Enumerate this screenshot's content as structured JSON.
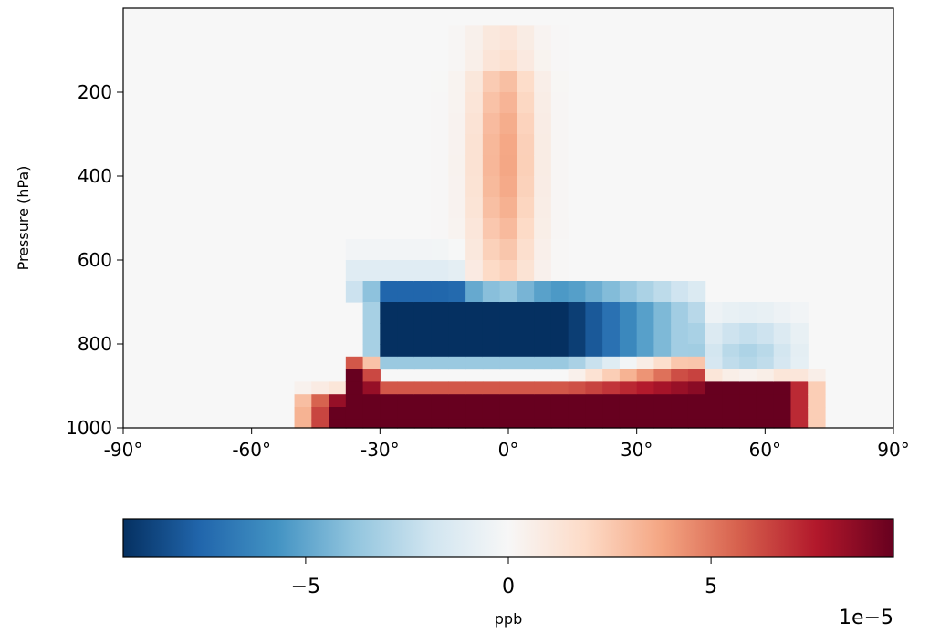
{
  "chart_data": {
    "type": "heatmap",
    "title": "",
    "xlabel": "",
    "ylabel": "Pressure (hPa)",
    "xlim": [
      -90,
      90
    ],
    "ylim": [
      1000,
      0
    ],
    "x_ticks": [
      -90,
      -60,
      -30,
      0,
      30,
      60,
      90
    ],
    "x_tick_labels": [
      "-90°",
      "-60°",
      "-30°",
      "0°",
      "30°",
      "60°",
      "90°"
    ],
    "y_ticks": [
      200,
      400,
      600,
      800,
      1000
    ],
    "y_tick_labels": [
      "200",
      "400",
      "600",
      "800",
      "1000"
    ],
    "grid": false,
    "colormap": "RdBu_r",
    "value_range": [
      -9.5e-05,
      9.5e-05
    ],
    "colorbar": {
      "label": "ppb",
      "orientation": "horizontal",
      "ticks": [
        -5e-05,
        0,
        5e-05
      ],
      "tick_labels": [
        "−5",
        "0",
        "5"
      ],
      "offset_text": "1e−5"
    },
    "description_of_field": "Zonal-mean difference field (ppb x 1e-5); strong positive values near surface between -40° and 70°, strong negative values at 700-900 hPa between -30° and 40°, weak positive plume aloft near equator.",
    "latitudes": [
      -90,
      -86,
      -82,
      -78,
      -74,
      -70,
      -66,
      -62,
      -58,
      -54,
      -50,
      -46,
      -42,
      -38,
      -34,
      -30,
      -26,
      -22,
      -18,
      -14,
      -10,
      -6,
      -2,
      2,
      6,
      10,
      14,
      18,
      22,
      26,
      30,
      34,
      38,
      42,
      46,
      50,
      54,
      58,
      62,
      66,
      70,
      74,
      78,
      82,
      86,
      90
    ],
    "pressure_levels": [
      40,
      100,
      150,
      200,
      250,
      300,
      350,
      400,
      450,
      500,
      550,
      600,
      650,
      700,
      750,
      800,
      830,
      860,
      890,
      920,
      950,
      980,
      1000
    ],
    "sample_values": [
      {
        "lat": -26,
        "p": 950,
        "value": 9.5e-05
      },
      {
        "lat": -6,
        "p": 800,
        "value": -9.5e-05
      },
      {
        "lat": -2,
        "p": 350,
        "value": 3.5e-05
      },
      {
        "lat": 34,
        "p": 800,
        "value": -9.5e-05
      },
      {
        "lat": 58,
        "p": 950,
        "value": 9.5e-05
      },
      {
        "lat": 58,
        "p": 850,
        "value": -2.5e-05
      },
      {
        "lat": -60,
        "p": 500,
        "value": 0
      }
    ]
  }
}
